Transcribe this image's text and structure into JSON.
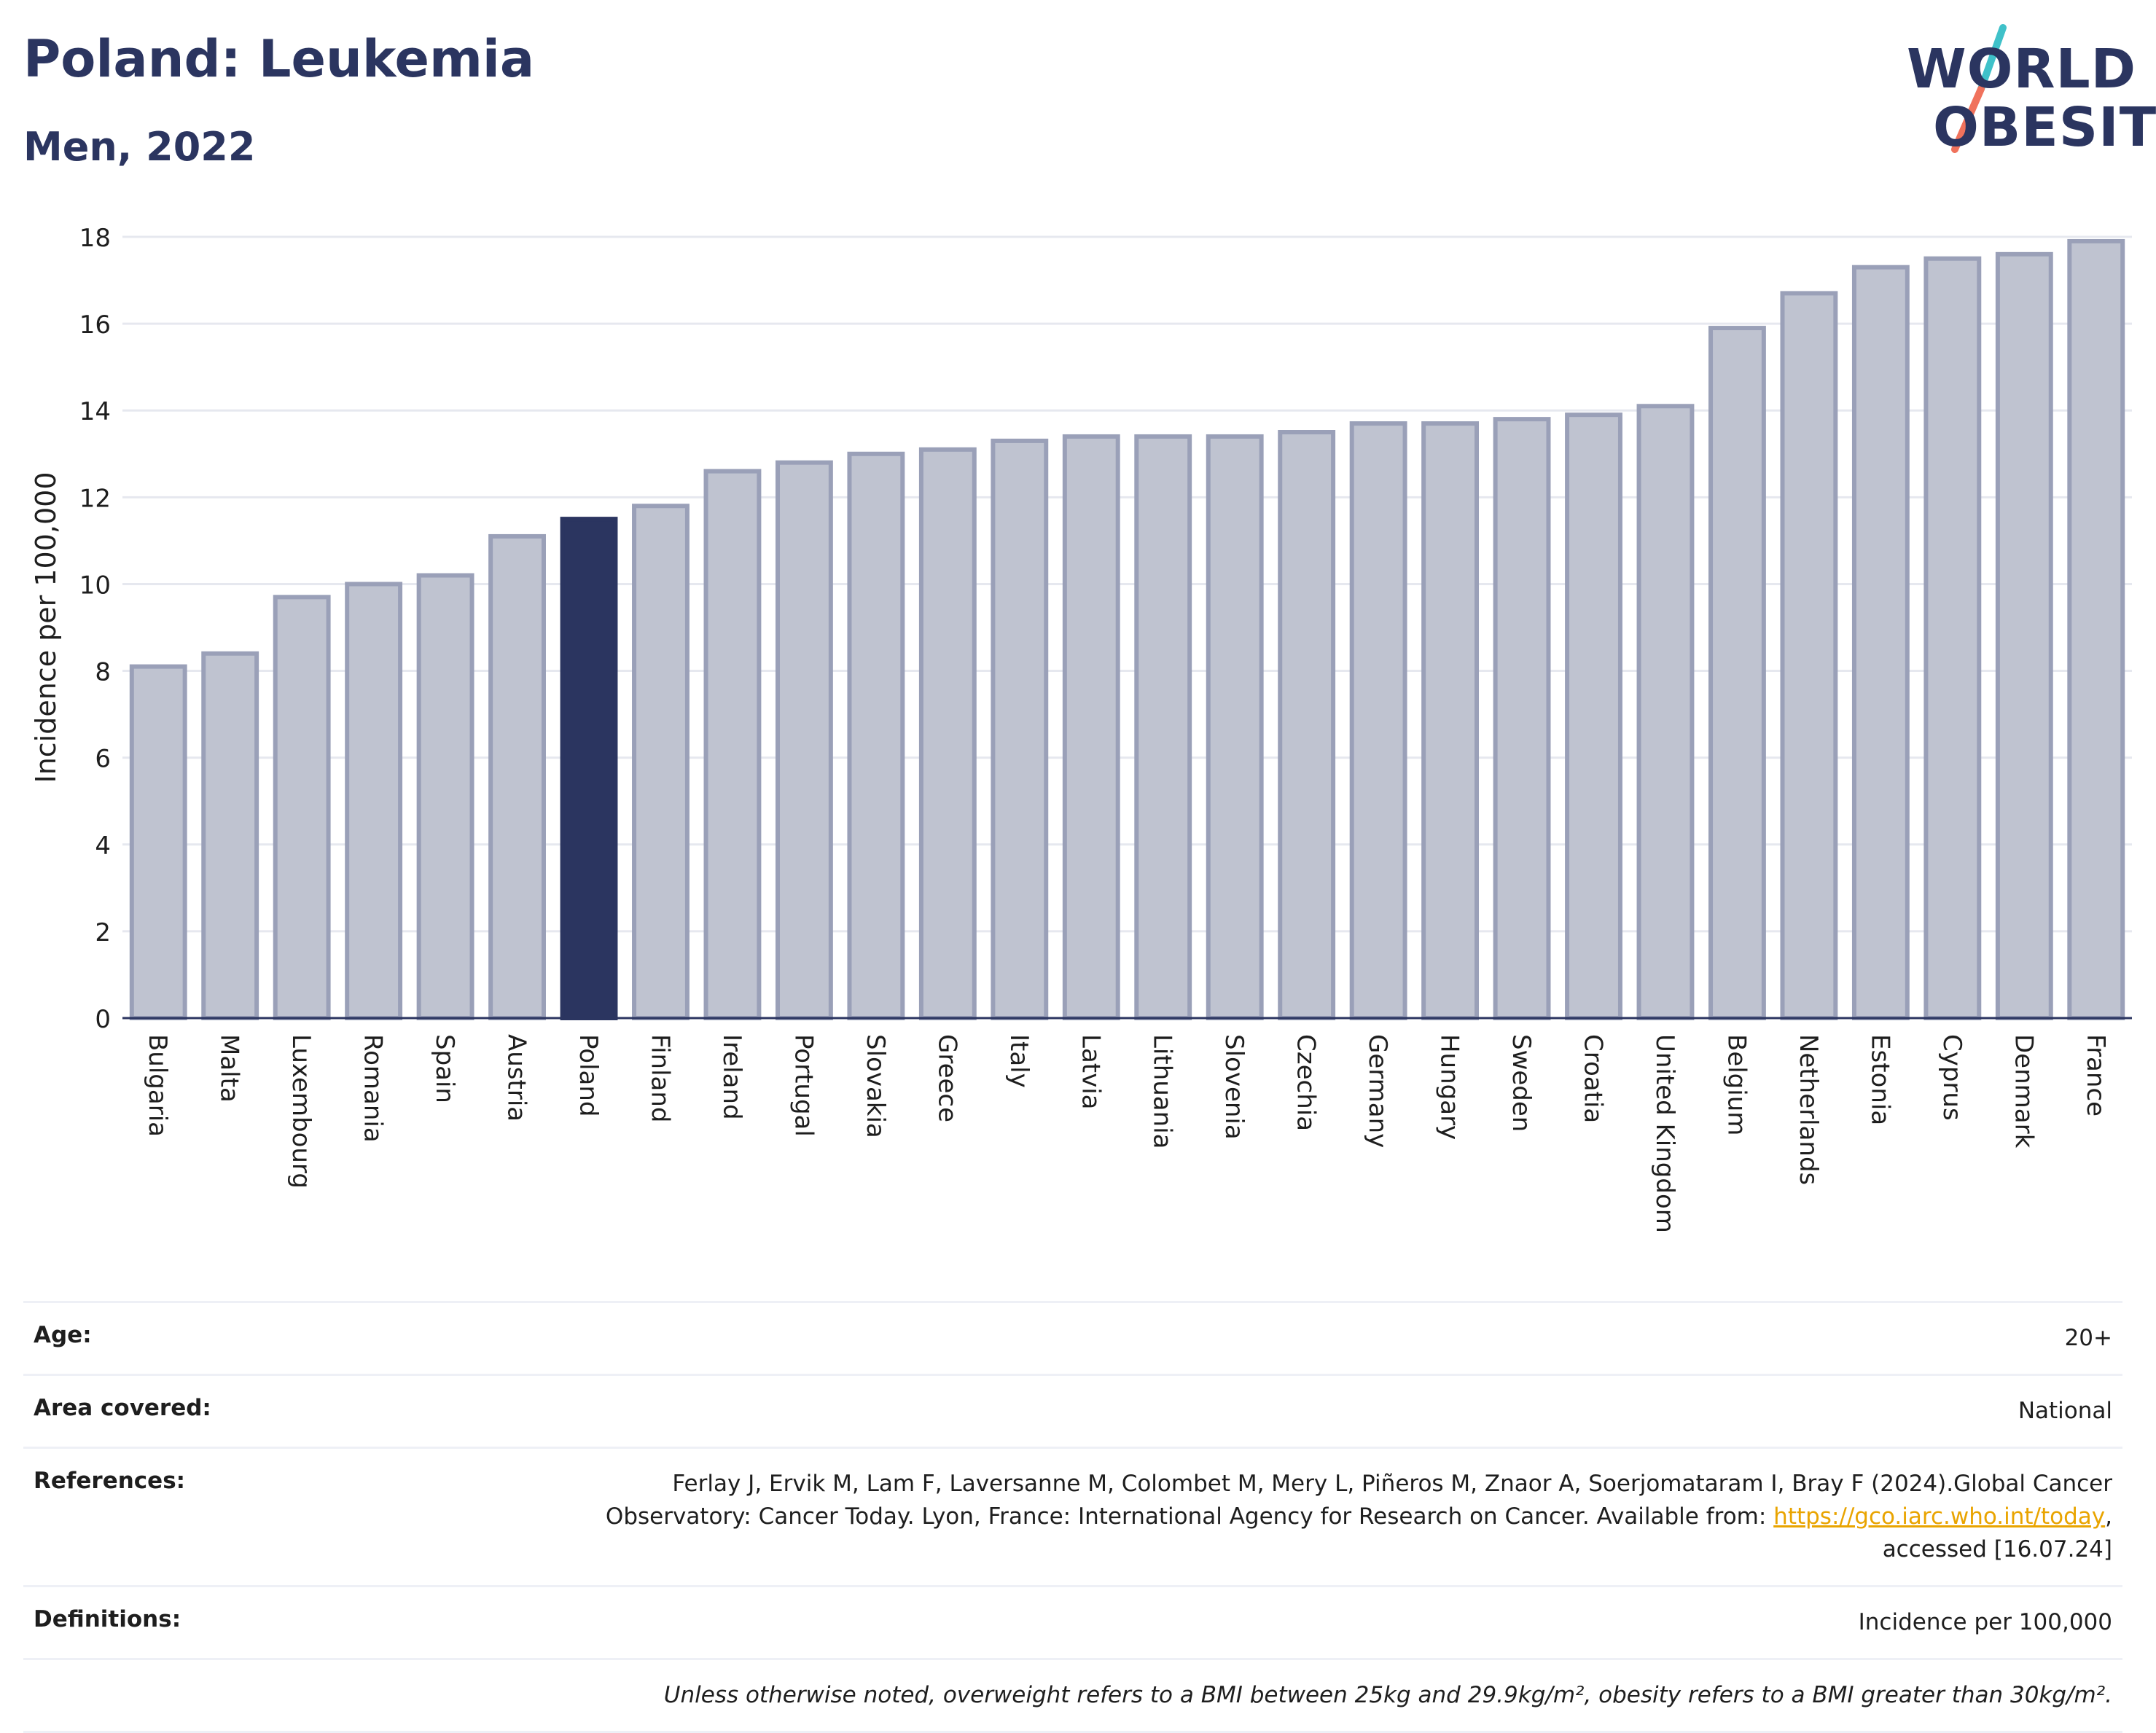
{
  "header": {
    "title": "Poland: Leukemia",
    "subtitle": "Men, 2022"
  },
  "logo": {
    "line1": "WORLD",
    "line2": "OBESITY",
    "colors": {
      "text": "#2b3560",
      "slash_top": "#3fc1c9",
      "slash_bottom": "#f0725c"
    }
  },
  "chart_data": {
    "type": "bar",
    "title": "Poland: Leukemia",
    "subtitle": "Men, 2022",
    "xlabel": "",
    "ylabel": "Incidence per 100,000",
    "ylim": [
      0,
      18
    ],
    "yticks": [
      0,
      2,
      4,
      6,
      8,
      10,
      12,
      14,
      16,
      18
    ],
    "grid": true,
    "highlight": "Poland",
    "colors": {
      "bar": "#bfc3d0",
      "bar_border": "#9aa0b8",
      "highlight": "#2b3560"
    },
    "categories": [
      "Bulgaria",
      "Malta",
      "Luxembourg",
      "Romania",
      "Spain",
      "Austria",
      "Poland",
      "Finland",
      "Ireland",
      "Portugal",
      "Slovakia",
      "Greece",
      "Italy",
      "Latvia",
      "Lithuania",
      "Slovenia",
      "Czechia",
      "Germany",
      "Hungary",
      "Sweden",
      "Croatia",
      "United Kingdom",
      "Belgium",
      "Netherlands",
      "Estonia",
      "Cyprus",
      "Denmark",
      "France"
    ],
    "values": [
      8.1,
      8.4,
      9.7,
      10.0,
      10.2,
      11.1,
      11.5,
      11.8,
      12.6,
      12.8,
      13.0,
      13.1,
      13.3,
      13.4,
      13.4,
      13.4,
      13.5,
      13.7,
      13.7,
      13.8,
      13.9,
      14.1,
      15.9,
      16.7,
      17.3,
      17.5,
      17.6,
      17.9
    ]
  },
  "meta": {
    "age": {
      "label": "Age:",
      "value": "20+"
    },
    "area": {
      "label": "Area covered:",
      "value": "National"
    },
    "references": {
      "label": "References:",
      "text1": "Ferlay J, Ervik M, Lam F, Laversanne M, Colombet M, Mery L, Piñeros M, Znaor A, Soerjomataram I, Bray F (2024).Global Cancer",
      "text2": "Observatory: Cancer Today. Lyon, France: International Agency for Research on Cancer. Available from: ",
      "link": "https://gco.iarc.who.int/today",
      "text3": ",",
      "text4": "accessed [16.07.24]"
    },
    "definitions": {
      "label": "Definitions:",
      "value": "Incidence per 100,000"
    },
    "note": "Unless otherwise noted, overweight refers to a BMI between 25kg and 29.9kg/m², obesity refers to a BMI greater than 30kg/m²."
  }
}
